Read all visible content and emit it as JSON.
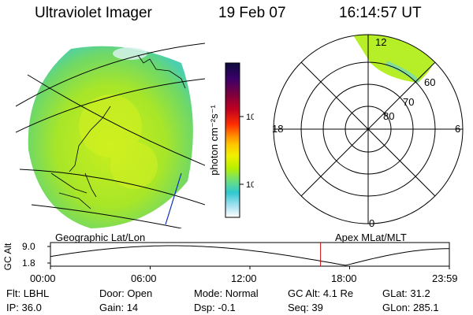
{
  "header": {
    "title": "Ultraviolet Imager",
    "date": "19 Feb 07",
    "time": "16:14:57 UT"
  },
  "colorbar": {
    "label": "photon cm⁻²s⁻¹",
    "ticks": [
      "100",
      "10"
    ],
    "scale": "log",
    "colors": [
      "#0c0c3a",
      "#3a006a",
      "#7a0040",
      "#c00020",
      "#ff3000",
      "#ff8a00",
      "#ffc800",
      "#f0f000",
      "#b8f000",
      "#6ee07a",
      "#30c8d0",
      "#a0e0f0",
      "#ffffff"
    ]
  },
  "polar_plot": {
    "lat_labels": [
      "60",
      "70",
      "80"
    ],
    "mlt_labels": {
      "top": "12",
      "left": "18",
      "right": "6",
      "bottom": "0"
    }
  },
  "altitude_plot": {
    "left_title": "Geographic Lat/Lon",
    "right_title": "Apex MLat/MLT",
    "y_label": "GC Alt",
    "y_ticks": [
      "9.0",
      "1.8"
    ],
    "x_ticks": [
      "00:00",
      "06:00",
      "12:00",
      "18:00",
      "23:59"
    ],
    "current_time_hours": 16.25
  },
  "info": {
    "row1": [
      {
        "label": "Flt:",
        "value": "LBHL"
      },
      {
        "label": "Door:",
        "value": "Open"
      },
      {
        "label": "Mode:",
        "value": "Normal"
      },
      {
        "label": "GC Alt:",
        "value": "4.1 Re"
      },
      {
        "label": "GLat:",
        "value": "31.2"
      }
    ],
    "row2": [
      {
        "label": "IP:",
        "value": "36.0"
      },
      {
        "label": "Gain:",
        "value": "14"
      },
      {
        "label": "Dsp:",
        "value": "-0.1"
      },
      {
        "label": "Seq:",
        "value": "39"
      },
      {
        "label": "GLon:",
        "value": "285.1"
      }
    ]
  }
}
